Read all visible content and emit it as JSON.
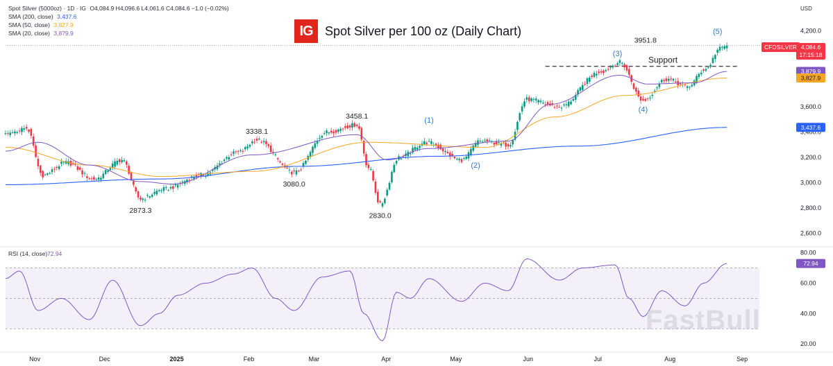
{
  "header": {
    "instrument_line": {
      "name": "Spot Silver (5000oz) · 1D · IG",
      "ohlc": "O4,084.9 H4,096.6 L4,061.6 C4,084.6 −1.0 (−0.02%)"
    },
    "sma_lines": [
      {
        "label": "SMA (200, close)",
        "value": "3,437.6",
        "color": "#2962ff"
      },
      {
        "label": "SMA (50, close)",
        "value": "3,827.9",
        "color": "#f5a623"
      },
      {
        "label": "SMA (20, close)",
        "value": "3,879.9",
        "color": "#7e57c2"
      }
    ],
    "logo": "IG",
    "title": "Spot Silver per 100 oz (Daily Chart)",
    "currency": "USD",
    "ticker": "CFDSILVER",
    "last_price": "4,084.6",
    "countdown": "17:15:18",
    "watermark": "FastBull"
  },
  "colors": {
    "up": "#089981",
    "down": "#f23645",
    "sma200": "#2962ff",
    "sma50": "#f5a623",
    "sma20": "#7e57c2",
    "rsi": "#7e57c2",
    "wave_label": "#3179c7"
  },
  "chart_data": [
    {
      "type": "candlestick",
      "title": "Spot Silver per 100 oz (Daily Chart)",
      "y_axis": {
        "ticks": [
          "4,200.0",
          "3,600.0",
          "3,400.0",
          "3,200.0",
          "3,000.0",
          "2,800.0",
          "2,600.0"
        ],
        "tick_values": [
          4200,
          3600,
          3400,
          3200,
          3000,
          2800,
          2600
        ],
        "range": [
          2500,
          4280
        ]
      },
      "x_axis": {
        "ticks": [
          "Nov",
          "Dec",
          "2025",
          "Feb",
          "Mar",
          "Apr",
          "May",
          "Jun",
          "Jul",
          "Aug",
          "Sep"
        ],
        "tick_days": [
          0,
          30,
          61,
          92,
          120,
          151,
          181,
          212,
          242,
          273,
          304
        ],
        "range_days": [
          -6,
          318
        ]
      },
      "pivots": [
        {
          "day": -6,
          "price": 3380
        },
        {
          "day": 3,
          "price": 3430
        },
        {
          "day": 10,
          "price": 3060
        },
        {
          "day": 20,
          "price": 3160
        },
        {
          "day": 32,
          "price": 3030
        },
        {
          "day": 44,
          "price": 3180
        },
        {
          "day": 52,
          "price": 2873.3
        },
        {
          "day": 62,
          "price": 2950
        },
        {
          "day": 78,
          "price": 3060
        },
        {
          "day": 94,
          "price": 3240
        },
        {
          "day": 102,
          "price": 3338.1
        },
        {
          "day": 118,
          "price": 3080
        },
        {
          "day": 132,
          "price": 3400
        },
        {
          "day": 145,
          "price": 3458.1
        },
        {
          "day": 150,
          "price": 3120
        },
        {
          "day": 155,
          "price": 2830
        },
        {
          "day": 163,
          "price": 3200
        },
        {
          "day": 175,
          "price": 3320
        },
        {
          "day": 190,
          "price": 3180
        },
        {
          "day": 198,
          "price": 3330
        },
        {
          "day": 210,
          "price": 3300
        },
        {
          "day": 218,
          "price": 3660
        },
        {
          "day": 232,
          "price": 3600
        },
        {
          "day": 250,
          "price": 3880
        },
        {
          "day": 258,
          "price": 3951.8
        },
        {
          "day": 268,
          "price": 3650
        },
        {
          "day": 278,
          "price": 3820
        },
        {
          "day": 287,
          "price": 3760
        },
        {
          "day": 295,
          "price": 3900
        },
        {
          "day": 301,
          "price": 4060
        },
        {
          "day": 304,
          "price": 4084.6
        }
      ],
      "sma200": [
        {
          "day": -6,
          "price": 2985
        },
        {
          "day": 60,
          "price": 3030
        },
        {
          "day": 120,
          "price": 3130
        },
        {
          "day": 180,
          "price": 3210
        },
        {
          "day": 240,
          "price": 3290
        },
        {
          "day": 304,
          "price": 3437.6
        }
      ],
      "sma50": [
        {
          "day": -6,
          "price": 3280
        },
        {
          "day": 30,
          "price": 3140
        },
        {
          "day": 61,
          "price": 3050
        },
        {
          "day": 100,
          "price": 3090
        },
        {
          "day": 150,
          "price": 3320
        },
        {
          "day": 200,
          "price": 3280
        },
        {
          "day": 230,
          "price": 3520
        },
        {
          "day": 260,
          "price": 3690
        },
        {
          "day": 304,
          "price": 3827.9
        }
      ],
      "sma20": [
        {
          "day": -6,
          "price": 3250
        },
        {
          "day": 8,
          "price": 3320
        },
        {
          "day": 30,
          "price": 3140
        },
        {
          "day": 52,
          "price": 3010
        },
        {
          "day": 66,
          "price": 2990
        },
        {
          "day": 100,
          "price": 3220
        },
        {
          "day": 145,
          "price": 3380
        },
        {
          "day": 158,
          "price": 3180
        },
        {
          "day": 175,
          "price": 3270
        },
        {
          "day": 210,
          "price": 3330
        },
        {
          "day": 228,
          "price": 3620
        },
        {
          "day": 258,
          "price": 3850
        },
        {
          "day": 270,
          "price": 3780
        },
        {
          "day": 290,
          "price": 3790
        },
        {
          "day": 304,
          "price": 3879.9
        }
      ],
      "support": {
        "label": "Support",
        "price": 3920,
        "from_day": 226,
        "to_day": 309
      },
      "reference_line": {
        "price": 4084.6
      },
      "annotations": [
        {
          "text": "2873.3",
          "day": 52,
          "price": 2873.3,
          "pos": "below"
        },
        {
          "text": "3338.1",
          "day": 102,
          "price": 3338.1,
          "pos": "above"
        },
        {
          "text": "3080.0",
          "day": 118,
          "price": 3080.0,
          "pos": "below"
        },
        {
          "text": "3458.1",
          "day": 145,
          "price": 3458.1,
          "pos": "above"
        },
        {
          "text": "2830.0",
          "day": 155,
          "price": 2830.0,
          "pos": "below"
        },
        {
          "text": "3951.8",
          "day": 269,
          "price": 4108,
          "pos": "center"
        }
      ],
      "wave_labels": [
        {
          "text": "(1)",
          "day": 176,
          "price": 3475
        },
        {
          "text": "(2)",
          "day": 196,
          "price": 3120
        },
        {
          "text": "(3)",
          "day": 257,
          "price": 4002
        },
        {
          "text": "(4)",
          "day": 268,
          "price": 3560
        },
        {
          "text": "(5)",
          "day": 300,
          "price": 4175
        }
      ],
      "price_tags": [
        {
          "value": "3,879.9",
          "price": 3879.9,
          "color": "#7e57c2"
        },
        {
          "value": "3,827.9",
          "price": 3827.9,
          "color": "#f5a623"
        },
        {
          "value": "3,437.6",
          "price": 3437.6,
          "color": "#2962ff"
        }
      ]
    },
    {
      "type": "line",
      "label": "RSI (14, close)",
      "last_value": "72.94",
      "y_axis": {
        "ticks": [
          "80.00",
          "60.00",
          "40.00",
          "20.00"
        ],
        "tick_values": [
          80,
          60,
          40,
          20
        ],
        "range": [
          16,
          83
        ]
      },
      "bands": {
        "upper": 70,
        "middle": 50,
        "lower": 30
      },
      "pivots": [
        {
          "day": -6,
          "value": 63
        },
        {
          "day": 0,
          "value": 68
        },
        {
          "day": 8,
          "value": 42
        },
        {
          "day": 18,
          "value": 50
        },
        {
          "day": 30,
          "value": 36
        },
        {
          "day": 40,
          "value": 62
        },
        {
          "day": 52,
          "value": 32
        },
        {
          "day": 60,
          "value": 40
        },
        {
          "day": 68,
          "value": 52
        },
        {
          "day": 80,
          "value": 60
        },
        {
          "day": 92,
          "value": 66
        },
        {
          "day": 100,
          "value": 70
        },
        {
          "day": 110,
          "value": 50
        },
        {
          "day": 118,
          "value": 42
        },
        {
          "day": 130,
          "value": 64
        },
        {
          "day": 142,
          "value": 68
        },
        {
          "day": 148,
          "value": 40
        },
        {
          "day": 156,
          "value": 22
        },
        {
          "day": 162,
          "value": 54
        },
        {
          "day": 168,
          "value": 50
        },
        {
          "day": 176,
          "value": 63
        },
        {
          "day": 190,
          "value": 48
        },
        {
          "day": 200,
          "value": 60
        },
        {
          "day": 210,
          "value": 55
        },
        {
          "day": 218,
          "value": 76
        },
        {
          "day": 232,
          "value": 62
        },
        {
          "day": 242,
          "value": 70
        },
        {
          "day": 256,
          "value": 72
        },
        {
          "day": 262,
          "value": 50
        },
        {
          "day": 268,
          "value": 38
        },
        {
          "day": 276,
          "value": 55
        },
        {
          "day": 286,
          "value": 45
        },
        {
          "day": 294,
          "value": 60
        },
        {
          "day": 304,
          "value": 72.94
        }
      ]
    }
  ]
}
